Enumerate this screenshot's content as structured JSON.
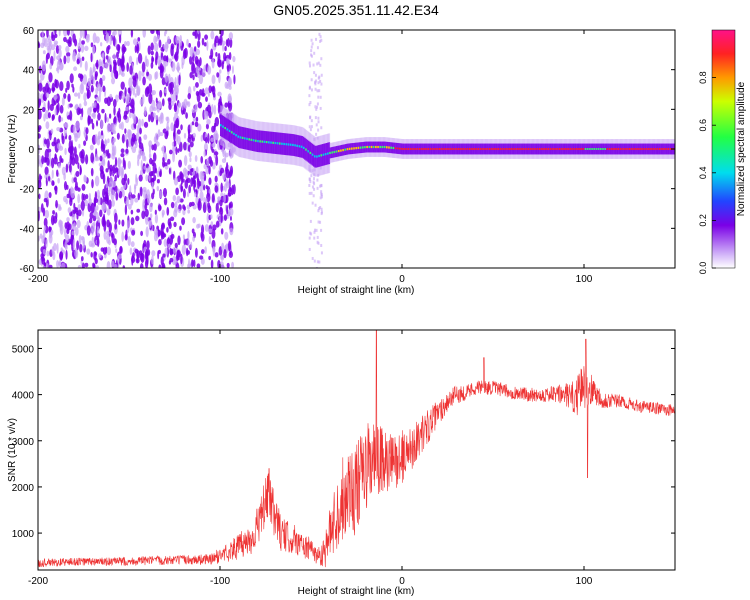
{
  "chart_data": [
    {
      "type": "heatmap",
      "title": "GN05.2025.351.11.42.E34",
      "xlabel": "Height of straight line (km)",
      "ylabel": "Frequency (Hz)",
      "xlim": [
        -200,
        150
      ],
      "ylim": [
        -60,
        60
      ],
      "xticks": [
        -200,
        -100,
        0,
        100
      ],
      "yticks": [
        -60,
        -40,
        -20,
        0,
        20,
        40,
        60
      ],
      "noise_region_x": [
        -200,
        -100
      ],
      "spike_x": -48,
      "ridge": {
        "x": [
          -100,
          -90,
          -80,
          -70,
          -60,
          -55,
          -48,
          -40,
          -30,
          -20,
          -10,
          0,
          50,
          100,
          150
        ],
        "y": [
          12,
          6,
          4,
          3,
          2,
          1,
          -4,
          -2,
          0,
          1,
          1,
          0,
          0,
          0,
          0
        ]
      },
      "colorbar": {
        "label": "Normalized spectral amplitude",
        "range": [
          0,
          1
        ],
        "ticks": [
          0.0,
          0.2,
          0.4,
          0.6,
          0.8
        ]
      },
      "colors": {
        "noise": "#7a00e6",
        "weak": "#c7a3f5",
        "ridge_mid": "#33ff66",
        "ridge_high": "#ff2222"
      }
    },
    {
      "type": "line",
      "title": "",
      "xlabel": "Height of straight line (km)",
      "ylabel": "SNR (10 * v/v)",
      "xlim": [
        -200,
        150
      ],
      "ylim": [
        200,
        5400
      ],
      "xticks": [
        -200,
        -100,
        0,
        100
      ],
      "yticks": [
        1000,
        2000,
        3000,
        4000,
        5000
      ],
      "series": [
        {
          "name": "SNR",
          "color": "#ee3333",
          "x": [
            -200,
            -180,
            -160,
            -140,
            -120,
            -105,
            -95,
            -88,
            -82,
            -78,
            -74,
            -70,
            -66,
            -62,
            -58,
            -54,
            -50,
            -46,
            -42,
            -38,
            -34,
            -30,
            -26,
            -22,
            -18,
            -14,
            -10,
            -6,
            -2,
            2,
            6,
            10,
            14,
            18,
            22,
            26,
            30,
            35,
            40,
            45,
            50,
            55,
            60,
            70,
            80,
            90,
            95,
            100,
            105,
            110,
            120,
            130,
            140,
            150
          ],
          "values": [
            350,
            380,
            380,
            400,
            420,
            430,
            600,
            750,
            900,
            1300,
            1800,
            1400,
            950,
            900,
            850,
            700,
            650,
            500,
            650,
            1200,
            1600,
            2000,
            1900,
            2200,
            2500,
            2600,
            2500,
            2500,
            2600,
            2700,
            2900,
            3100,
            3300,
            3500,
            3700,
            3900,
            4000,
            4050,
            4150,
            4150,
            4150,
            4100,
            4050,
            4000,
            4000,
            4000,
            3900,
            4200,
            4100,
            3900,
            3850,
            3750,
            3700,
            3650
          ],
          "amp": [
            90,
            90,
            90,
            100,
            100,
            120,
            220,
            300,
            380,
            450,
            550,
            500,
            380,
            350,
            330,
            280,
            250,
            200,
            400,
            650,
            900,
            1000,
            950,
            1000,
            950,
            900,
            750,
            650,
            600,
            550,
            480,
            420,
            380,
            320,
            260,
            220,
            200,
            170,
            160,
            160,
            150,
            150,
            150,
            150,
            170,
            250,
            400,
            500,
            300,
            200,
            150,
            130,
            130,
            130
          ],
          "peaks": [
            {
              "x": -14,
              "y": 5400
            },
            {
              "x": -73,
              "y": 2400
            },
            {
              "x": 101,
              "y": 5200
            },
            {
              "x": 102,
              "y": 2200
            },
            {
              "x": 45,
              "y": 4800
            }
          ]
        }
      ]
    }
  ]
}
